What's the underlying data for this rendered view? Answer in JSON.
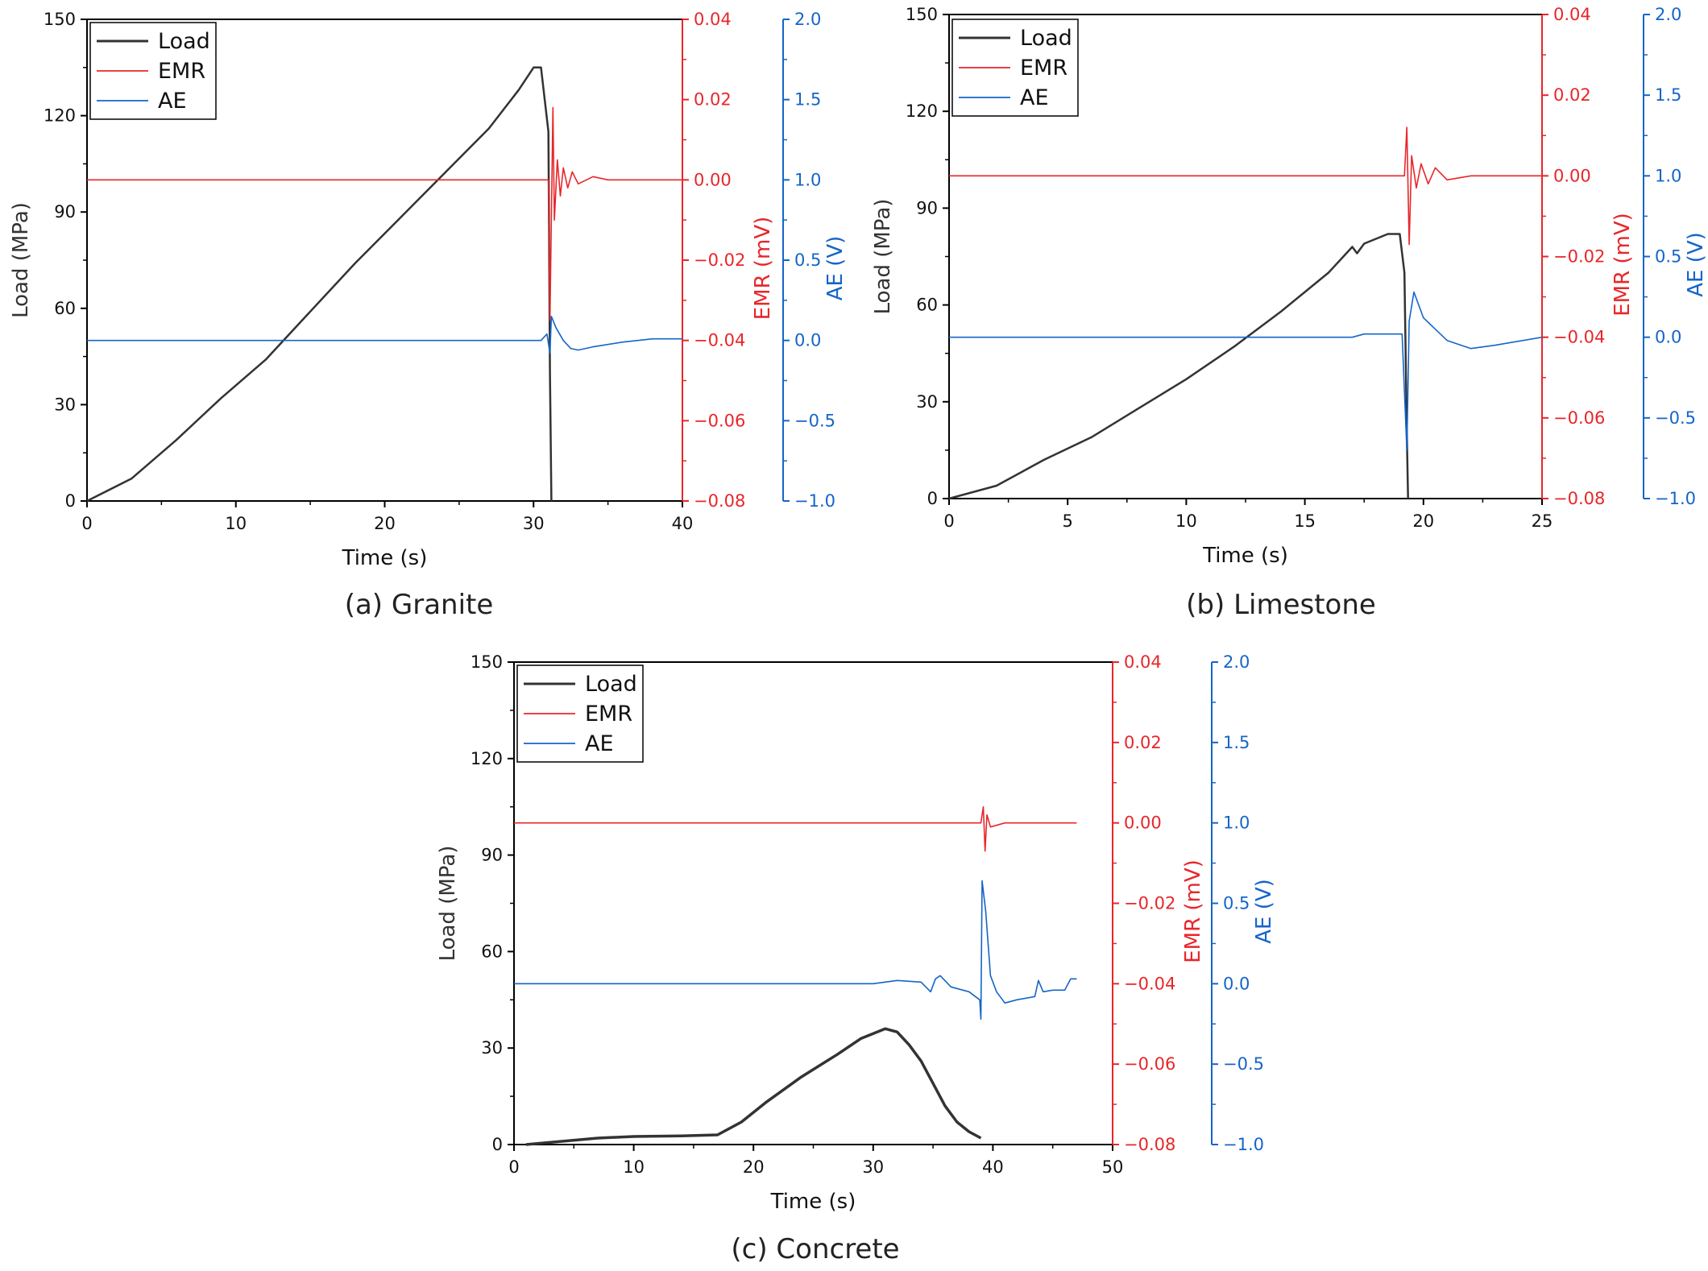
{
  "colors": {
    "load": "#333333",
    "emr": "#e8262a",
    "ae": "#1565c8",
    "axis": "#000000"
  },
  "chart_data": [
    {
      "type": "line",
      "caption": "(a) Granite",
      "xlabel": "Time (s)",
      "ylabel_left": "Load (MPa)",
      "ylabel_emr": "EMR (mV)",
      "ylabel_ae": "AE (V)",
      "xlim": [
        0,
        40
      ],
      "xticks": [
        0,
        10,
        20,
        30,
        40
      ],
      "load_lim": [
        0,
        150
      ],
      "load_ticks": [
        0,
        30,
        60,
        90,
        120,
        150
      ],
      "emr_lim": [
        -0.08,
        0.04
      ],
      "emr_ticks": [
        "−0.08",
        "−0.06",
        "−0.04",
        "−0.02",
        "0.00",
        "0.02",
        "0.04"
      ],
      "ae_lim": [
        -1.0,
        2.0
      ],
      "ae_ticks": [
        "−1.0",
        "−0.5",
        "0.0",
        "0.5",
        "1.0",
        "1.5",
        "2.0"
      ],
      "legend": [
        "Load",
        "EMR",
        "AE"
      ],
      "series": [
        {
          "name": "Load",
          "axis": "load",
          "points": [
            [
              0,
              0
            ],
            [
              3,
              7
            ],
            [
              6,
              19
            ],
            [
              9,
              32
            ],
            [
              12,
              44
            ],
            [
              15,
              59
            ],
            [
              18,
              74
            ],
            [
              21,
              88
            ],
            [
              24,
              102
            ],
            [
              27,
              116
            ],
            [
              29,
              128
            ],
            [
              30,
              135
            ],
            [
              30.5,
              135
            ],
            [
              31.0,
              115
            ],
            [
              31.1,
              40
            ],
            [
              31.2,
              0
            ]
          ]
        },
        {
          "name": "EMR",
          "axis": "emr",
          "points": [
            [
              0,
              0
            ],
            [
              31.0,
              0
            ],
            [
              31.1,
              -0.035
            ],
            [
              31.3,
              0.018
            ],
            [
              31.4,
              -0.01
            ],
            [
              31.6,
              0.005
            ],
            [
              31.8,
              -0.004
            ],
            [
              32.0,
              0.003
            ],
            [
              32.3,
              -0.002
            ],
            [
              32.6,
              0.002
            ],
            [
              33,
              -0.001
            ],
            [
              34,
              0.0008
            ],
            [
              35,
              0
            ],
            [
              40,
              0
            ]
          ]
        },
        {
          "name": "AE",
          "axis": "ae",
          "points": [
            [
              0,
              0
            ],
            [
              30.5,
              0
            ],
            [
              30.9,
              0.04
            ],
            [
              31.1,
              -0.08
            ],
            [
              31.2,
              0.15
            ],
            [
              31.5,
              0.08
            ],
            [
              32,
              0.0
            ],
            [
              32.5,
              -0.05
            ],
            [
              33,
              -0.06
            ],
            [
              34,
              -0.04
            ],
            [
              36,
              -0.01
            ],
            [
              38,
              0.01
            ],
            [
              40,
              0.01
            ]
          ]
        }
      ]
    },
    {
      "type": "line",
      "caption": "(b) Limestone",
      "xlabel": "Time (s)",
      "ylabel_left": "Load (MPa)",
      "ylabel_emr": "EMR (mV)",
      "ylabel_ae": "AE (V)",
      "xlim": [
        0,
        25
      ],
      "xticks": [
        0,
        5,
        10,
        15,
        20,
        25
      ],
      "load_lim": [
        0,
        150
      ],
      "load_ticks": [
        0,
        30,
        60,
        90,
        120,
        150
      ],
      "emr_lim": [
        -0.08,
        0.04
      ],
      "emr_ticks": [
        "−0.08",
        "−0.06",
        "−0.04",
        "−0.02",
        "0.00",
        "0.02",
        "0.04"
      ],
      "ae_lim": [
        -1.0,
        2.0
      ],
      "ae_ticks": [
        "−1.0",
        "−0.5",
        "0.0",
        "0.5",
        "1.0",
        "1.5",
        "2.0"
      ],
      "legend": [
        "Load",
        "EMR",
        "AE"
      ],
      "series": [
        {
          "name": "Load",
          "axis": "load",
          "points": [
            [
              0,
              0
            ],
            [
              2,
              4
            ],
            [
              4,
              12
            ],
            [
              6,
              19
            ],
            [
              8,
              28
            ],
            [
              10,
              37
            ],
            [
              12,
              47
            ],
            [
              14,
              58
            ],
            [
              16,
              70
            ],
            [
              17,
              78
            ],
            [
              17.2,
              76
            ],
            [
              17.5,
              79
            ],
            [
              18.5,
              82
            ],
            [
              19.0,
              82
            ],
            [
              19.2,
              70
            ],
            [
              19.3,
              20
            ],
            [
              19.35,
              0
            ]
          ]
        },
        {
          "name": "EMR",
          "axis": "emr",
          "points": [
            [
              0,
              0
            ],
            [
              19.2,
              0
            ],
            [
              19.3,
              0.012
            ],
            [
              19.4,
              -0.017
            ],
            [
              19.5,
              0.005
            ],
            [
              19.7,
              -0.003
            ],
            [
              19.9,
              0.003
            ],
            [
              20.2,
              -0.002
            ],
            [
              20.5,
              0.002
            ],
            [
              21,
              -0.001
            ],
            [
              22,
              0
            ],
            [
              25,
              0
            ]
          ]
        },
        {
          "name": "AE",
          "axis": "ae",
          "points": [
            [
              0,
              0
            ],
            [
              17,
              0
            ],
            [
              17.5,
              0.02
            ],
            [
              19.1,
              0.02
            ],
            [
              19.3,
              -0.7
            ],
            [
              19.4,
              0.1
            ],
            [
              19.6,
              0.28
            ],
            [
              20,
              0.12
            ],
            [
              21,
              -0.02
            ],
            [
              22,
              -0.07
            ],
            [
              23,
              -0.05
            ],
            [
              25,
              0.0
            ]
          ]
        }
      ]
    },
    {
      "type": "line",
      "caption": "(c) Concrete",
      "xlabel": "Time (s)",
      "ylabel_left": "Load (MPa)",
      "ylabel_emr": "EMR (mV)",
      "ylabel_ae": "AE (V)",
      "xlim": [
        0,
        50
      ],
      "xticks": [
        0,
        10,
        20,
        30,
        40,
        50
      ],
      "load_lim": [
        0,
        150
      ],
      "load_ticks": [
        0,
        30,
        60,
        90,
        120,
        150
      ],
      "emr_lim": [
        -0.08,
        0.04
      ],
      "emr_ticks": [
        "−0.08",
        "−0.06",
        "−0.04",
        "−0.02",
        "0.00",
        "0.02",
        "0.04"
      ],
      "ae_lim": [
        -1.0,
        2.0
      ],
      "ae_ticks": [
        "−1.0",
        "−0.5",
        "0.0",
        "0.5",
        "1.0",
        "1.5",
        "2.0"
      ],
      "legend": [
        "Load",
        "EMR",
        "AE"
      ],
      "series": [
        {
          "name": "Load",
          "axis": "load",
          "points": [
            [
              1,
              0
            ],
            [
              4,
              1
            ],
            [
              7,
              2
            ],
            [
              10,
              2.5
            ],
            [
              14,
              2.7
            ],
            [
              17,
              3
            ],
            [
              19,
              7
            ],
            [
              21,
              13
            ],
            [
              24,
              21
            ],
            [
              27,
              28
            ],
            [
              29,
              33
            ],
            [
              31,
              36
            ],
            [
              32,
              35
            ],
            [
              33,
              31
            ],
            [
              34,
              26
            ],
            [
              35,
              19
            ],
            [
              36,
              12
            ],
            [
              37,
              7
            ],
            [
              38,
              4
            ],
            [
              39,
              2
            ]
          ]
        },
        {
          "name": "EMR",
          "axis": "emr",
          "points": [
            [
              0,
              0
            ],
            [
              39.0,
              0
            ],
            [
              39.2,
              0.004
            ],
            [
              39.35,
              -0.007
            ],
            [
              39.5,
              0.002
            ],
            [
              39.8,
              -0.001
            ],
            [
              41,
              0
            ],
            [
              47,
              0
            ]
          ]
        },
        {
          "name": "AE",
          "axis": "ae",
          "points": [
            [
              0,
              0
            ],
            [
              30,
              0
            ],
            [
              32,
              0.02
            ],
            [
              34,
              0.01
            ],
            [
              34.8,
              -0.05
            ],
            [
              35.2,
              0.03
            ],
            [
              35.6,
              0.05
            ],
            [
              36.5,
              -0.02
            ],
            [
              38,
              -0.05
            ],
            [
              38.9,
              -0.1
            ],
            [
              39.0,
              -0.22
            ],
            [
              39.1,
              0.64
            ],
            [
              39.4,
              0.45
            ],
            [
              39.8,
              0.05
            ],
            [
              40.3,
              -0.05
            ],
            [
              41,
              -0.12
            ],
            [
              42,
              -0.1
            ],
            [
              43.5,
              -0.08
            ],
            [
              43.8,
              0.02
            ],
            [
              44.2,
              -0.05
            ],
            [
              45,
              -0.04
            ],
            [
              46,
              -0.04
            ],
            [
              46.5,
              0.03
            ],
            [
              47,
              0.03
            ]
          ]
        }
      ]
    }
  ]
}
